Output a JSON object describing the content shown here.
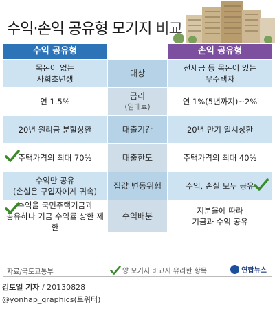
{
  "header": {
    "title_bold": "수익·손익 공유형 모기지",
    "title_light": " 비교"
  },
  "columns": {
    "left": "수익 공유형",
    "right": "손익 공유형"
  },
  "rows": [
    {
      "left": "목돈이 없는\n사회초년생",
      "mid": "대상",
      "mid_sub": "",
      "right": "전세금 등 목돈이 있는\n무주택자",
      "left_check": false,
      "right_check": false
    },
    {
      "left": "연 1.5%",
      "mid": "금리",
      "mid_sub": "(임대료)",
      "right": "연 1%(5년까지)~2%",
      "left_check": false,
      "right_check": false
    },
    {
      "left": "20년 원리금 분할상환",
      "mid": "대출기간",
      "mid_sub": "",
      "right": "20년 만기 일시상환",
      "left_check": false,
      "right_check": false
    },
    {
      "left": "주택가격의 최대 70%",
      "mid": "대출한도",
      "mid_sub": "",
      "right": "주택가격의 최대 40%",
      "left_check": true,
      "right_check": false
    },
    {
      "left": "수익만 공유\n(손실은 구입자에게 귀속)",
      "mid": "집값 변동위험",
      "mid_sub": "",
      "right": "수익, 손실 모두 공유",
      "left_check": false,
      "right_check": true
    },
    {
      "left": "수익을 국민주택기금과\n공유하나 기금 수익률 상한 제한",
      "mid": "수익배분",
      "mid_sub": "",
      "right": "지분율에 따라\n기금과 수익 공유",
      "left_check": true,
      "right_check": false
    }
  ],
  "footer": {
    "source": "자료/국토교통부",
    "legend": "양 모기지 비교시 유리한 항목",
    "logo": "연합뉴스"
  },
  "credit": {
    "name": "김토일 기자",
    "date": "/ 20130828",
    "handle": "@yonhap_graphics(트위터)"
  },
  "colors": {
    "left_header": "#2d73b8",
    "right_header": "#7c4f9f",
    "check": "#3a8a2a"
  }
}
